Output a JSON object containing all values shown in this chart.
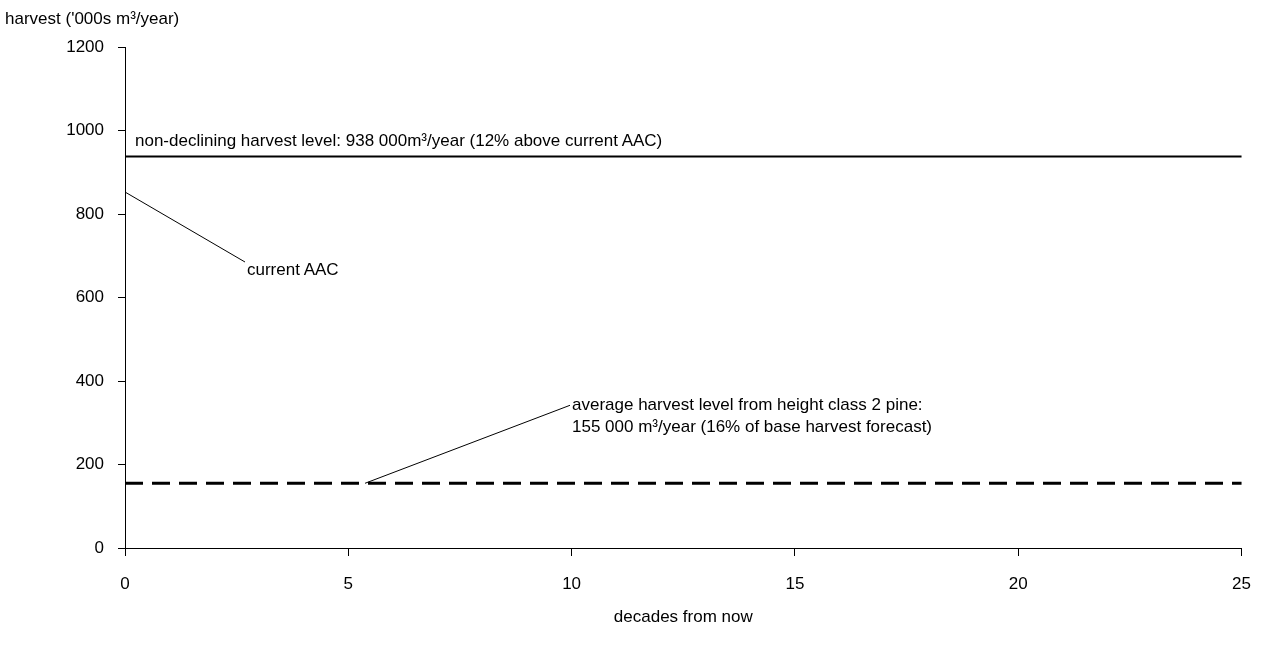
{
  "chart_data": {
    "type": "line",
    "xlabel": "decades from now",
    "ylabel": "harvest ('000s m³/year)",
    "xlim": [
      0,
      25
    ],
    "xticks": [
      0,
      5,
      10,
      15,
      20,
      25
    ],
    "ylim": [
      0,
      1200
    ],
    "yticks": [
      0,
      200,
      400,
      600,
      800,
      1000,
      1200
    ],
    "grid": false,
    "legend": false,
    "ref_lines": [
      {
        "axis": "y",
        "value": 938,
        "label": "non-declining harvest level: 938 000m³/year (12% above current AAC)",
        "color": "#000000",
        "line_style": "solid"
      },
      {
        "axis": "y",
        "value": 155,
        "label": "average harvest level from height class 2 pine:\n155 000 m³/year (16% of base harvest forecast)",
        "color": "#000000",
        "line_style": "dashed"
      }
    ],
    "annotations": [
      "current AAC"
    ]
  }
}
